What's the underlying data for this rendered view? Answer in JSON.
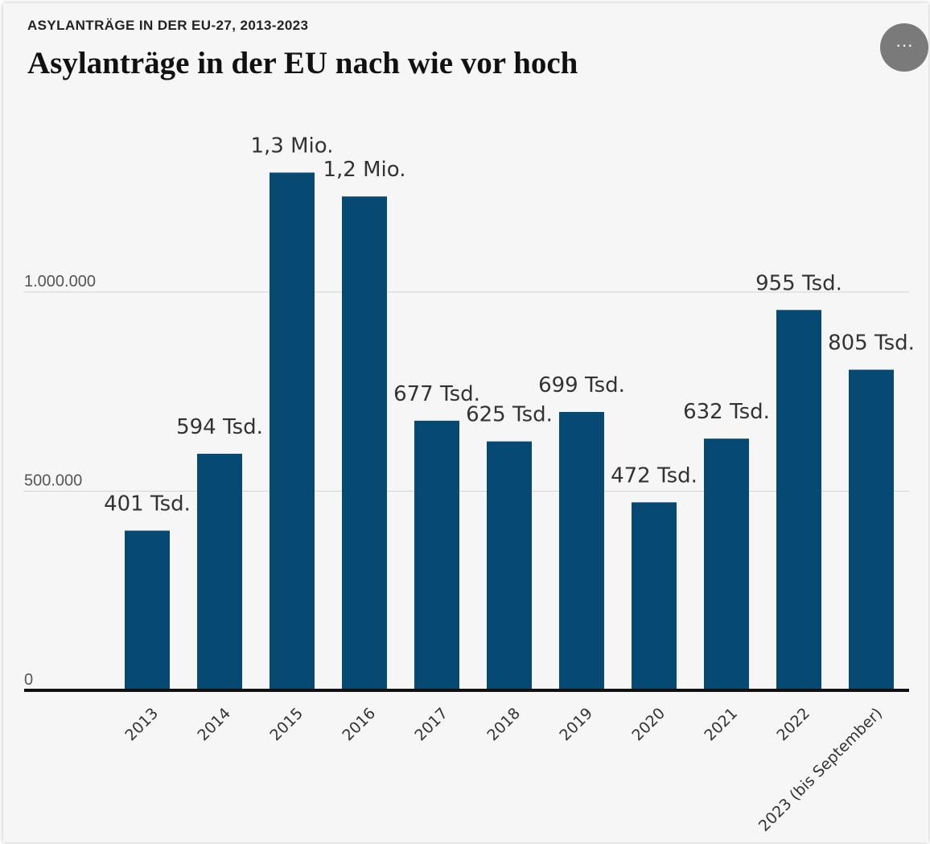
{
  "header": {
    "kicker": "ASYLANTRÄGE IN DER EU-27, 2013-2023",
    "title": "Asylanträge in der EU nach wie vor hoch",
    "more_label": "···"
  },
  "chart_data": {
    "type": "bar",
    "title": "Asylanträge in der EU nach wie vor hoch",
    "subtitle": "ASYLANTRÄGE IN DER EU-27, 2013-2023",
    "xlabel": "",
    "ylabel": "",
    "ylim": [
      0,
      1400000
    ],
    "grid": true,
    "bar_color": "#064a74",
    "categories": [
      "2013",
      "2014",
      "2015",
      "2016",
      "2017",
      "2018",
      "2019",
      "2020",
      "2021",
      "2022",
      "2023 (bis September)"
    ],
    "values": [
      401000,
      594000,
      1300000,
      1240000,
      677000,
      625000,
      699000,
      472000,
      632000,
      955000,
      805000
    ],
    "data_labels": [
      "401 Tsd.",
      "594 Tsd.",
      "1,3 Mio.",
      "1,2 Mio.",
      "677 Tsd.",
      "625 Tsd.",
      "699 Tsd.",
      "472 Tsd.",
      "632 Tsd.",
      "955 Tsd.",
      "805 Tsd."
    ],
    "y_ticks": [
      {
        "value": 0,
        "label": "0"
      },
      {
        "value": 500000,
        "label": "500.000"
      },
      {
        "value": 1000000,
        "label": "1.000.000"
      }
    ]
  }
}
